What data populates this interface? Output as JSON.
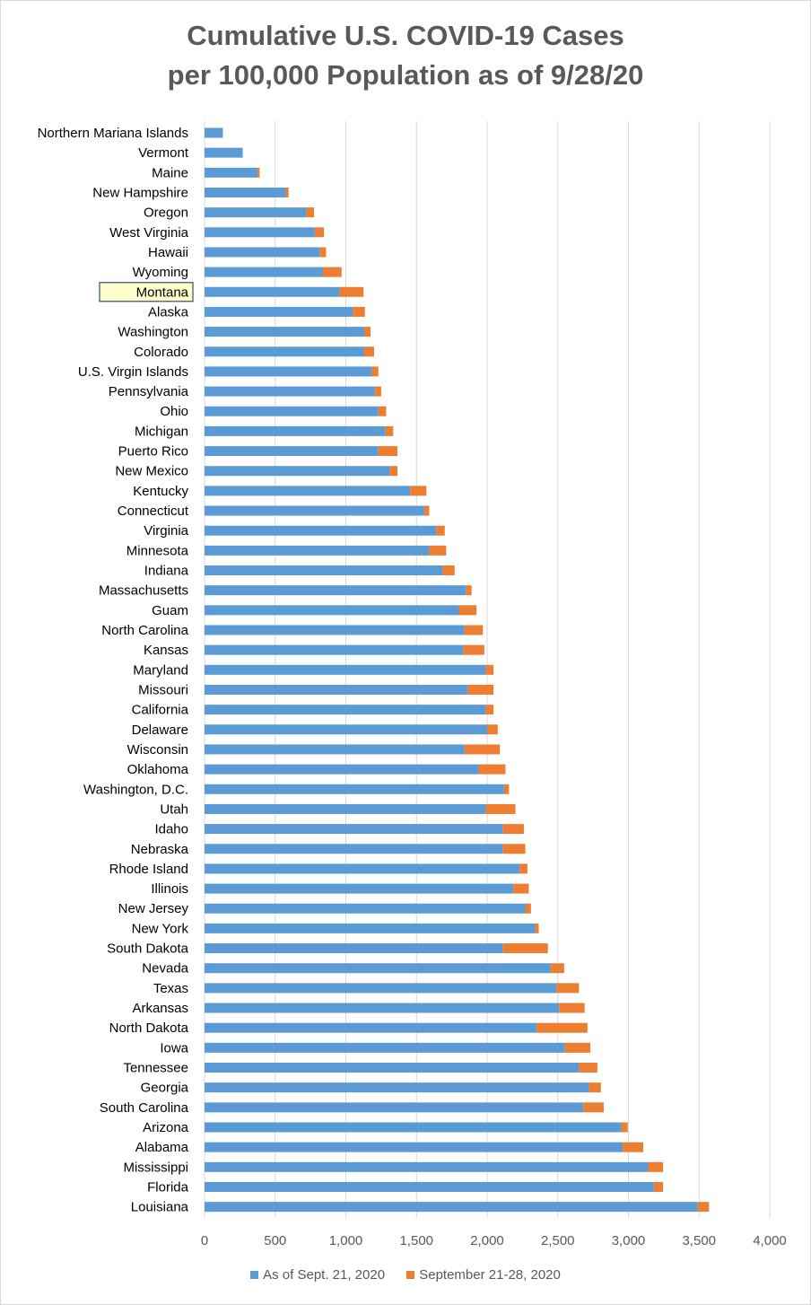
{
  "chart_data": {
    "type": "bar",
    "orientation": "horizontal",
    "stacked": true,
    "title_lines": [
      "Cumulative U.S. COVID-19 Cases",
      "per 100,000 Population as of 9/28/20"
    ],
    "xlim": [
      0,
      4000
    ],
    "ticks": [
      "0",
      "500",
      "1,000",
      "1,500",
      "2,000",
      "2,500",
      "3,000",
      "3,500",
      "4,000"
    ],
    "tick_values": [
      0,
      500,
      1000,
      1500,
      2000,
      2500,
      3000,
      3500,
      4000
    ],
    "grid": true,
    "legend_position": "bottom",
    "highlighted_category": "Montana",
    "categories": [
      "Northern Mariana Islands",
      "Vermont",
      "Maine",
      "New Hampshire",
      "Oregon",
      "West Virginia",
      "Hawaii",
      "Wyoming",
      "Montana",
      "Alaska",
      "Washington",
      "Colorado",
      "U.S. Virgin Islands",
      "Pennsylvania",
      "Ohio",
      "Michigan",
      "Puerto Rico",
      "New Mexico",
      "Kentucky",
      "Connecticut",
      "Virginia",
      "Minnesota",
      "Indiana",
      "Massachusetts",
      "Guam",
      "North Carolina",
      "Kansas",
      "Maryland",
      "Missouri",
      "California",
      "Delaware",
      "Wisconsin",
      "Oklahoma",
      "Washington, D.C.",
      "Utah",
      "Idaho",
      "Nebraska",
      "Rhode Island",
      "Illinois",
      "New Jersey",
      "New York",
      "South Dakota",
      "Nevada",
      "Texas",
      "Arkansas",
      "North Dakota",
      "Iowa",
      "Tennessee",
      "Georgia",
      "South Carolina",
      "Arizona",
      "Alabama",
      "Mississippi",
      "Florida",
      "Louisiana"
    ],
    "series": [
      {
        "name": "As of Sept. 21, 2020",
        "color": "#5b9bd5",
        "values": [
          130,
          270,
          375,
          575,
          720,
          780,
          815,
          835,
          955,
          1050,
          1130,
          1130,
          1185,
          1205,
          1230,
          1280,
          1230,
          1310,
          1455,
          1555,
          1640,
          1590,
          1685,
          1850,
          1800,
          1840,
          1830,
          1990,
          1860,
          1990,
          2000,
          1840,
          1940,
          2120,
          1990,
          2110,
          2110,
          2230,
          2185,
          2270,
          2340,
          2110,
          2450,
          2490,
          2510,
          2350,
          2550,
          2650,
          2720,
          2680,
          2950,
          2960,
          3140,
          3180,
          3490
        ]
      },
      {
        "name": "September 21-28, 2020",
        "color": "#ed7d31",
        "values": [
          0,
          0,
          15,
          20,
          55,
          65,
          45,
          135,
          170,
          85,
          45,
          70,
          45,
          45,
          55,
          55,
          135,
          55,
          115,
          35,
          60,
          120,
          85,
          40,
          125,
          130,
          150,
          55,
          185,
          55,
          75,
          250,
          190,
          35,
          210,
          150,
          160,
          55,
          110,
          40,
          25,
          320,
          95,
          160,
          180,
          360,
          180,
          130,
          85,
          145,
          45,
          145,
          105,
          65,
          80
        ]
      }
    ]
  }
}
